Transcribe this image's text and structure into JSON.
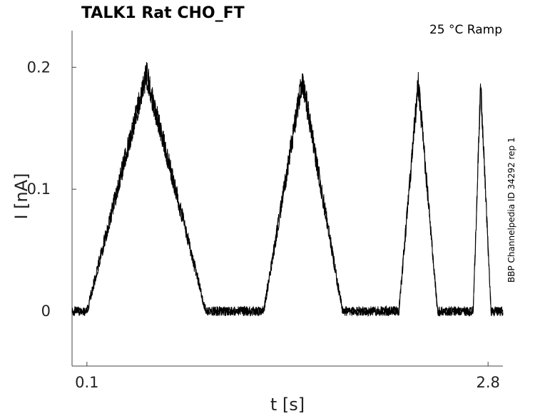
{
  "chart_data": {
    "type": "line",
    "title": "TALK1  Rat  CHO_FT",
    "condition": "25 °C  Ramp",
    "side_label": "BBP Channelpedia ID 34292 rep 1",
    "xlabel": "t [s]",
    "ylabel": "I [nA]",
    "xlim": [
      0.0,
      2.9
    ],
    "ylim": [
      -0.045,
      0.23
    ],
    "x_ticks": [
      0.1,
      2.8
    ],
    "x_tick_labels": [
      "0.1",
      "2.8"
    ],
    "y_ticks": [
      0,
      0.1,
      0.2
    ],
    "y_tick_labels": [
      "0",
      "0.1",
      "0.2"
    ],
    "grid": false,
    "series": [
      {
        "color": "#000000",
        "x": [
          0.0,
          0.1,
          0.5,
          0.9,
          1.29,
          1.55,
          1.82,
          2.0,
          2.2,
          2.33,
          2.46,
          2.57,
          2.7,
          2.75,
          2.82,
          2.9
        ],
        "y": [
          0.0,
          0.0,
          0.195,
          0.0,
          0.0,
          0.19,
          0.0,
          0.0,
          0.0,
          0.188,
          0.0,
          0.0,
          0.0,
          0.186,
          0.0,
          0.0
        ]
      }
    ]
  }
}
